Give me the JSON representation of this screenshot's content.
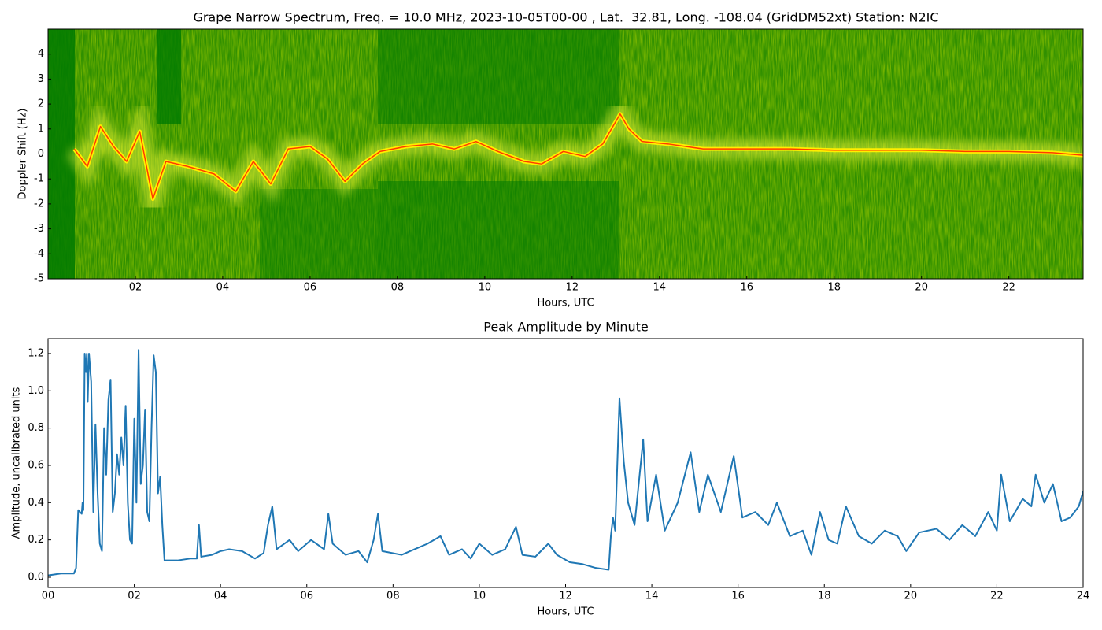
{
  "chart_data": [
    {
      "type": "spectrogram",
      "title": "Grape Narrow Spectrum, Freq. = 10.0 MHz, 2023-10-05T00-00 , Lat.  32.81, Long. -108.04 (GridDM52xt) Station: N2IC",
      "xlabel": "Hours, UTC",
      "ylabel": "Doppler Shift (Hz)",
      "x": [
        0.6,
        0.9,
        1.2,
        1.5,
        1.8,
        2.1,
        2.4,
        2.7,
        3.2,
        3.8,
        4.3,
        4.7,
        5.1,
        5.5,
        6.0,
        6.4,
        6.8,
        7.2,
        7.6,
        8.2,
        8.8,
        9.3,
        9.8,
        10.3,
        10.9,
        11.3,
        11.8,
        12.3,
        12.7,
        13.1,
        13.3,
        13.6,
        14.2,
        15,
        16,
        17,
        18,
        19,
        20,
        21,
        22,
        23,
        23.7
      ],
      "values": [
        0.2,
        -0.5,
        1.1,
        0.3,
        -0.3,
        0.9,
        -1.8,
        -0.3,
        -0.5,
        -0.8,
        -1.5,
        -0.3,
        -1.2,
        0.2,
        0.3,
        -0.2,
        -1.1,
        -0.4,
        0.1,
        0.3,
        0.4,
        0.2,
        0.5,
        0.1,
        -0.3,
        -0.4,
        0.1,
        -0.1,
        0.4,
        1.6,
        1.0,
        0.5,
        0.4,
        0.2,
        0.2,
        0.2,
        0.15,
        0.15,
        0.15,
        0.1,
        0.1,
        0.05,
        -0.05
      ],
      "color": "#ff3c00",
      "xlim": [
        0,
        23.7
      ],
      "xticks": [
        {
          "value": 2,
          "label": "02"
        },
        {
          "value": 4,
          "label": "04"
        },
        {
          "value": 6,
          "label": "06"
        },
        {
          "value": 8,
          "label": "08"
        },
        {
          "value": 10,
          "label": "10"
        },
        {
          "value": 12,
          "label": "12"
        },
        {
          "value": 14,
          "label": "14"
        },
        {
          "value": 16,
          "label": "16"
        },
        {
          "value": 18,
          "label": "18"
        },
        {
          "value": 20,
          "label": "20"
        },
        {
          "value": 22,
          "label": "22"
        }
      ],
      "ylim": [
        -5,
        5
      ],
      "yticks": [
        -5,
        -4,
        -3,
        -2,
        -1,
        0,
        1,
        2,
        3,
        4
      ]
    },
    {
      "type": "line",
      "title": "Peak Amplitude by Minute",
      "xlabel": "Hours, UTC",
      "ylabel": "Amplitude, uncalibrated units",
      "x": [
        0,
        0.3,
        0.6,
        0.65,
        0.7,
        0.78,
        0.8,
        0.82,
        0.85,
        0.88,
        0.9,
        0.92,
        0.95,
        1.0,
        1.05,
        1.1,
        1.15,
        1.2,
        1.25,
        1.3,
        1.35,
        1.4,
        1.45,
        1.5,
        1.55,
        1.6,
        1.65,
        1.7,
        1.75,
        1.8,
        1.85,
        1.9,
        1.95,
        2.0,
        2.05,
        2.1,
        2.15,
        2.2,
        2.25,
        2.3,
        2.35,
        2.4,
        2.45,
        2.5,
        2.55,
        2.6,
        2.65,
        2.7,
        3.0,
        3.3,
        3.45,
        3.5,
        3.55,
        3.8,
        4.0,
        4.2,
        4.5,
        4.8,
        5.0,
        5.1,
        5.2,
        5.3,
        5.6,
        5.8,
        6.1,
        6.4,
        6.5,
        6.6,
        6.9,
        7.2,
        7.4,
        7.55,
        7.65,
        7.75,
        8.2,
        8.5,
        8.8,
        9.1,
        9.3,
        9.6,
        9.8,
        10.0,
        10.3,
        10.6,
        10.85,
        11.0,
        11.3,
        11.6,
        11.8,
        12.1,
        12.4,
        12.7,
        13.0,
        13.05,
        13.1,
        13.15,
        13.25,
        13.35,
        13.45,
        13.6,
        13.8,
        13.9,
        14.1,
        14.3,
        14.6,
        14.9,
        15.1,
        15.3,
        15.6,
        15.9,
        16.1,
        16.4,
        16.7,
        16.9,
        17.2,
        17.5,
        17.7,
        17.9,
        18.1,
        18.3,
        18.5,
        18.8,
        19.1,
        19.4,
        19.7,
        19.9,
        20.2,
        20.6,
        20.9,
        21.2,
        21.5,
        21.8,
        22.0,
        22.1,
        22.3,
        22.6,
        22.8,
        22.9,
        23.1,
        23.3,
        23.5,
        23.7,
        23.9,
        24.0
      ],
      "values": [
        0.01,
        0.02,
        0.02,
        0.05,
        0.36,
        0.34,
        0.4,
        0.36,
        1.2,
        1.1,
        1.2,
        0.94,
        1.2,
        1.05,
        0.35,
        0.82,
        0.45,
        0.18,
        0.14,
        0.8,
        0.55,
        0.95,
        1.06,
        0.35,
        0.45,
        0.66,
        0.55,
        0.75,
        0.6,
        0.92,
        0.4,
        0.2,
        0.18,
        0.85,
        0.4,
        1.22,
        0.5,
        0.6,
        0.9,
        0.35,
        0.3,
        0.8,
        1.19,
        1.1,
        0.45,
        0.54,
        0.28,
        0.09,
        0.09,
        0.1,
        0.1,
        0.28,
        0.11,
        0.12,
        0.14,
        0.15,
        0.14,
        0.1,
        0.13,
        0.28,
        0.38,
        0.15,
        0.2,
        0.14,
        0.2,
        0.15,
        0.34,
        0.18,
        0.12,
        0.14,
        0.08,
        0.2,
        0.34,
        0.14,
        0.12,
        0.15,
        0.18,
        0.22,
        0.12,
        0.15,
        0.1,
        0.18,
        0.12,
        0.15,
        0.27,
        0.12,
        0.11,
        0.18,
        0.12,
        0.08,
        0.07,
        0.05,
        0.04,
        0.22,
        0.32,
        0.25,
        0.96,
        0.62,
        0.4,
        0.28,
        0.74,
        0.3,
        0.55,
        0.25,
        0.4,
        0.67,
        0.35,
        0.55,
        0.35,
        0.65,
        0.32,
        0.35,
        0.28,
        0.4,
        0.22,
        0.25,
        0.12,
        0.35,
        0.2,
        0.18,
        0.38,
        0.22,
        0.18,
        0.25,
        0.22,
        0.14,
        0.24,
        0.26,
        0.2,
        0.28,
        0.22,
        0.35,
        0.25,
        0.55,
        0.3,
        0.42,
        0.38,
        0.55,
        0.4,
        0.5,
        0.3,
        0.32,
        0.38,
        0.46
      ],
      "color": "#1f77b4",
      "xlim": [
        0,
        24
      ],
      "xticks": [
        {
          "value": 0,
          "label": "00"
        },
        {
          "value": 2,
          "label": "02"
        },
        {
          "value": 4,
          "label": "04"
        },
        {
          "value": 6,
          "label": "06"
        },
        {
          "value": 8,
          "label": "08"
        },
        {
          "value": 10,
          "label": "10"
        },
        {
          "value": 12,
          "label": "12"
        },
        {
          "value": 14,
          "label": "14"
        },
        {
          "value": 16,
          "label": "16"
        },
        {
          "value": 18,
          "label": "18"
        },
        {
          "value": 20,
          "label": "20"
        },
        {
          "value": 22,
          "label": "22"
        },
        {
          "value": 24,
          "label": "24"
        }
      ],
      "ylim": [
        -0.055,
        1.28
      ],
      "yticks": [
        {
          "value": 0,
          "label": "0.0"
        },
        0.2,
        0.4,
        0.6,
        0.8,
        {
          "value": 1,
          "label": "1.0"
        },
        1.2
      ]
    }
  ]
}
